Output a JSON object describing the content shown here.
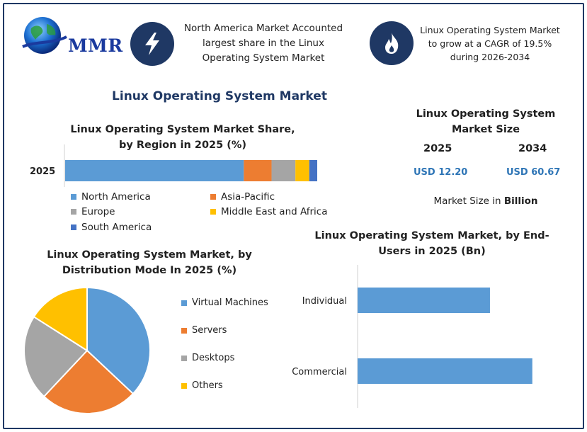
{
  "brand": {
    "logo_text": "MMR"
  },
  "header": {
    "box1_text": "North America Market Accounted largest share in the Linux Operating System Market",
    "box1_icon": "lightning-icon",
    "box2_text": "Linux Operating System Market to grow at a CAGR of 19.5% during 2026-2034",
    "box2_icon": "flame-icon"
  },
  "main_title": "Linux Operating System Market",
  "market_size": {
    "title": "Linux Operating System Market Size",
    "year1": "2025",
    "year2": "2034",
    "value1": "USD 12.20",
    "value2": "USD 60.67",
    "unit_prefix": "Market Size in ",
    "unit_bold": "Billion"
  },
  "colors": {
    "north_america": "#5b9bd5",
    "asia_pacific": "#ed7d31",
    "europe": "#a5a5a5",
    "mea": "#ffc000",
    "south_america": "#4472c4",
    "navy": "#1f3864",
    "value_blue": "#2e75b6"
  },
  "chart_data": [
    {
      "type": "bar",
      "orientation": "horizontal-stacked",
      "title": "Linux Operating System Market Share, by Region in 2025 (%)",
      "categories": [
        "2025"
      ],
      "series": [
        {
          "name": "North America",
          "values": [
            45
          ]
        },
        {
          "name": "Asia-Pacific",
          "values": [
            7
          ]
        },
        {
          "name": "Europe",
          "values": [
            6
          ]
        },
        {
          "name": "Middle East and Africa",
          "values": [
            3.5
          ]
        },
        {
          "name": "South America",
          "values": [
            2
          ]
        }
      ],
      "legend": "bottom",
      "grid": false
    },
    {
      "type": "pie",
      "title": "Linux Operating System Market, by Distribution Mode In 2025 (%)",
      "categories": [
        "Virtual Machines",
        "Servers",
        "Desktops",
        "Others"
      ],
      "values": [
        37,
        25,
        22,
        16
      ],
      "legend": "right"
    },
    {
      "type": "bar",
      "orientation": "horizontal",
      "title": "Linux Operating System Market, by End-Users in 2025 (Bn)",
      "categories": [
        "Individual",
        "Commercial"
      ],
      "values": [
        5.0,
        6.6
      ],
      "xlim": [
        0,
        7
      ],
      "grid": false
    }
  ]
}
